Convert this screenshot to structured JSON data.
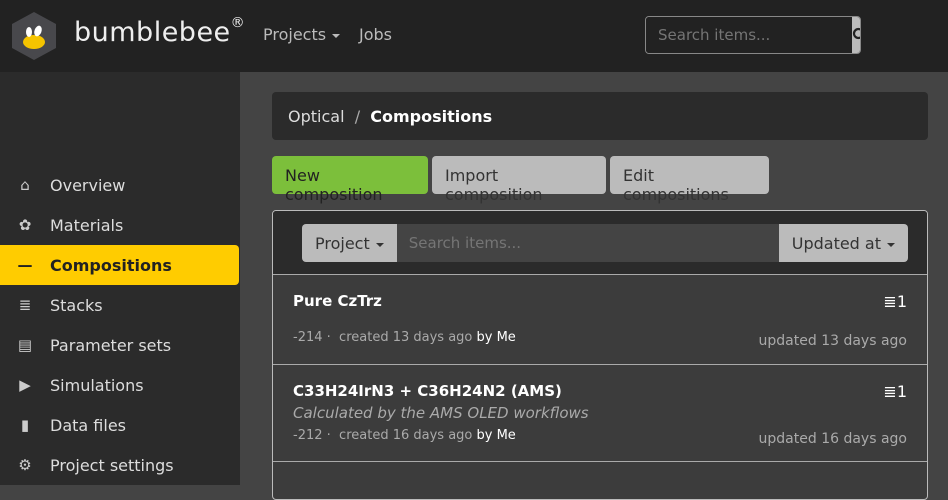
{
  "header": {
    "brand": "bumblebee",
    "reg": "®",
    "nav": [
      {
        "label": "Projects"
      },
      {
        "label": "Jobs"
      }
    ],
    "search_placeholder": "Search items..."
  },
  "sidebar": {
    "items": [
      {
        "label": "Overview",
        "icon": "⌂"
      },
      {
        "label": "Materials",
        "icon": "✿"
      },
      {
        "label": "Compositions",
        "icon": "—"
      },
      {
        "label": "Stacks",
        "icon": "≣"
      },
      {
        "label": "Parameter sets",
        "icon": "▤"
      },
      {
        "label": "Simulations",
        "icon": "▶"
      },
      {
        "label": "Data files",
        "icon": "▮"
      },
      {
        "label": "Project settings",
        "icon": "⚙"
      }
    ],
    "active": "Compositions"
  },
  "breadcrumb": {
    "parent": "Optical",
    "sep": "/",
    "current": "Compositions"
  },
  "actions": {
    "new": "New composition",
    "import": "Import composition",
    "edit": "Edit compositions"
  },
  "filter": {
    "project": "Project",
    "placeholder": "Search items...",
    "sort": "Updated at"
  },
  "items": [
    {
      "title": "Pure CzTrz",
      "desc": "",
      "id": "-214 ·",
      "created": "created 13 days ago",
      "by": "by Me",
      "updated": "updated 13 days ago",
      "count": "1"
    },
    {
      "title": "C33H24IrN3 + C36H24N2 (AMS)",
      "desc": "Calculated by the AMS OLED workflows",
      "id": "-212 ·",
      "created": "created 16 days ago",
      "by": "by Me",
      "updated": "updated 16 days ago",
      "count": "1"
    }
  ],
  "colors": {
    "accent": "#ffcc00",
    "new_button": "#7cbf3b"
  }
}
